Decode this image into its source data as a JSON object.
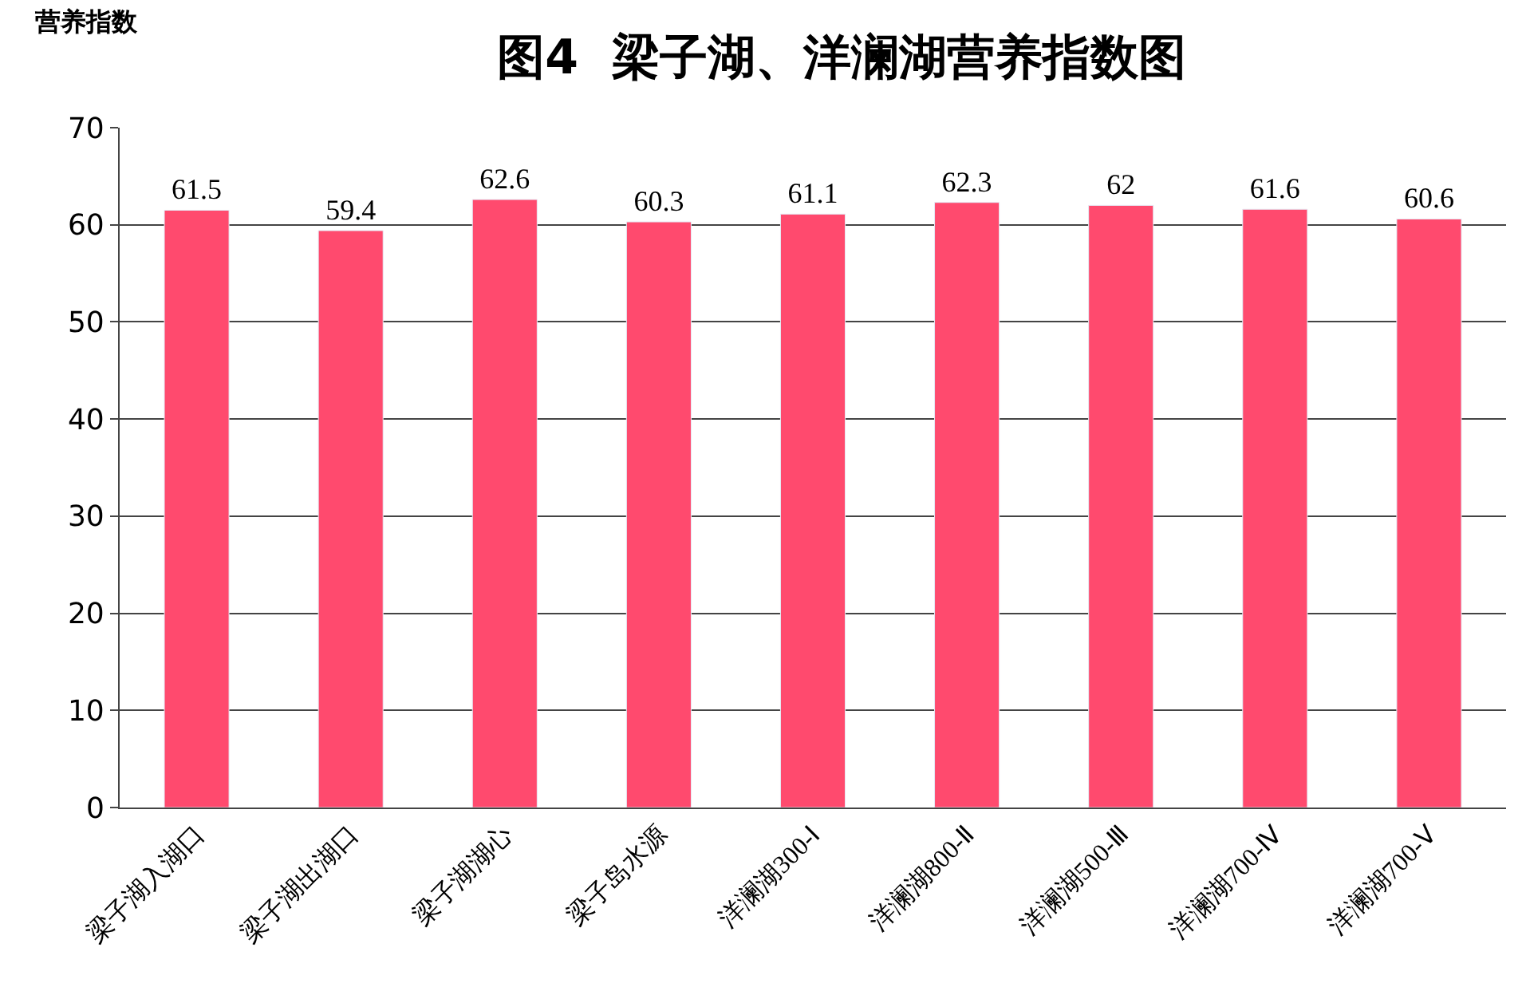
{
  "chart_data": {
    "type": "bar",
    "title": "图4  梁子湖、洋澜湖营养指数图",
    "ylabel": "营养指数",
    "categories": [
      "梁子湖入湖口",
      "梁子湖出湖口",
      "梁子湖湖心",
      "梁子岛水源",
      "洋澜湖300-Ⅰ",
      "洋澜湖800-Ⅱ",
      "洋澜湖500-Ⅲ",
      "洋澜湖700-Ⅳ",
      "洋澜湖700-Ⅴ"
    ],
    "values": [
      61.5,
      59.4,
      62.6,
      60.3,
      61.1,
      62.3,
      62,
      61.6,
      60.6
    ],
    "color": "#ff4a6e",
    "ylim": [
      0,
      70
    ],
    "yticks": [
      0,
      10,
      20,
      30,
      40,
      50,
      60,
      70
    ],
    "grid": "y",
    "data_labels": true
  }
}
